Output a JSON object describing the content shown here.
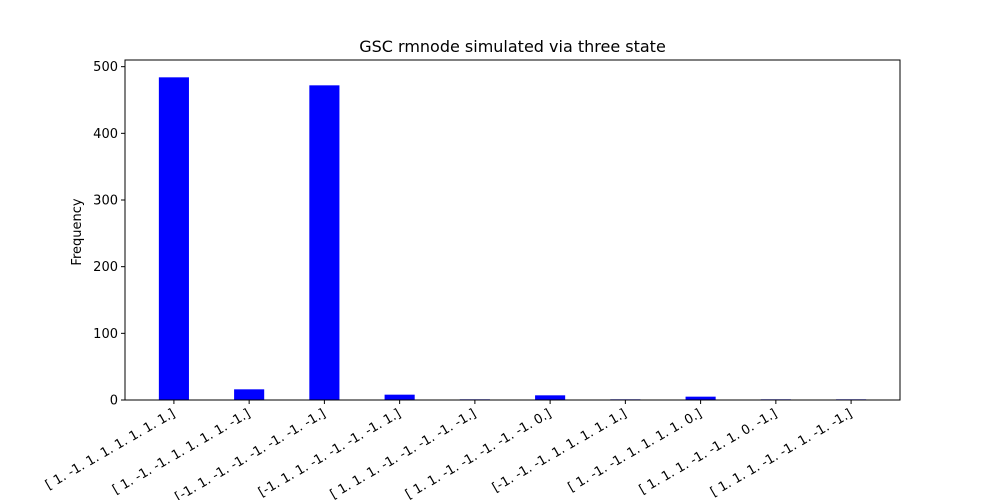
{
  "chart_data": {
    "type": "bar",
    "title": "GSC rmnode simulated via three state",
    "xlabel": "",
    "ylabel": "Frequency",
    "categories": [
      "[ 1. -1.  1.  1.  1.  1.  1.  1.]",
      "[ 1. -1. -1.  1.  1.  1.  1. -1.]",
      "[-1.  1. -1. -1. -1. -1. -1. -1.]",
      "[-1.  1.  1. -1. -1. -1. -1.  1.]",
      "[ 1.  1.  1. -1. -1. -1. -1. -1.]",
      "[ 1.  1. -1. -1. -1. -1. -1.  0.]",
      "[-1. -1. -1.  1.  1.  1.  1.  1.]",
      "[ 1. -1. -1.  1.  1.  1.  1.  0.]",
      "[ 1.  1.  1. -1. -1.  1.  0. -1.]",
      "[ 1.  1.  1. -1. -1.  1. -1. -1.]"
    ],
    "values": [
      484,
      16,
      472,
      8,
      1,
      7,
      1,
      5,
      1,
      1
    ],
    "ylim": [
      0,
      510
    ],
    "yticks": [
      0,
      100,
      200,
      300,
      400,
      500
    ],
    "bar_color": "#0000ff",
    "grid": false,
    "legend": "none"
  }
}
